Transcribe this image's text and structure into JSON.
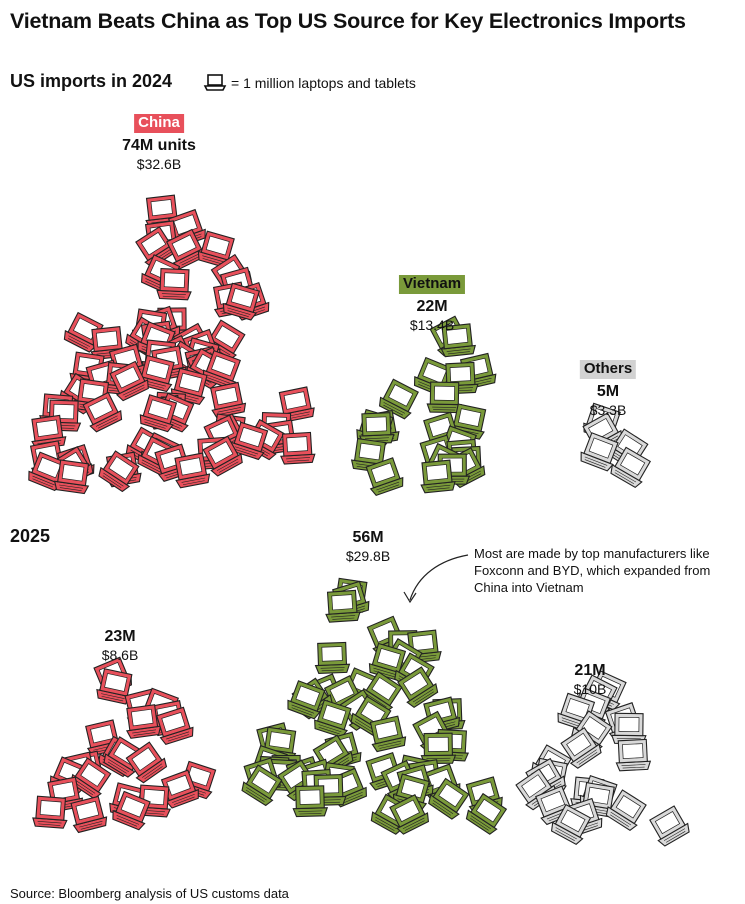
{
  "title": "Vietnam Beats China as Top US Source for Key Electronics Imports",
  "subtitle": "US imports in 2024",
  "legend": {
    "icon": "laptop-icon",
    "text": "= 1 million laptops and tablets"
  },
  "year_2025_label": "2025",
  "source": "Source: Bloomberg analysis of US customs data",
  "annotation": "Most are made by top manufacturers like Foxconn and BYD, which expanded from China into Vietnam",
  "colors": {
    "china": "#e8505b",
    "vietnam": "#7a9a3a",
    "others": "#d9d9d9"
  },
  "labels_2024": {
    "china": {
      "name": "China",
      "units": "74M units",
      "value": "$32.6B"
    },
    "vietnam": {
      "name": "Vietnam",
      "units": "22M",
      "value": "$13.4B"
    },
    "others": {
      "name": "Others",
      "units": "5M",
      "value": "$3.3B"
    }
  },
  "labels_2025": {
    "china": {
      "units": "23M",
      "value": "$8.6B"
    },
    "vietnam": {
      "units": "56M",
      "value": "$29.8B"
    },
    "others": {
      "units": "21M",
      "value": "$10B"
    }
  },
  "chart_data": {
    "type": "pictogram",
    "unit": "1 million laptops and tablets",
    "categories": [
      "China",
      "Vietnam",
      "Others"
    ],
    "series": [
      {
        "name": "2024",
        "units_millions": [
          74,
          22,
          5
        ],
        "value_billions_usd": [
          32.6,
          13.4,
          3.3
        ]
      },
      {
        "name": "2025",
        "units_millions": [
          23,
          56,
          21
        ],
        "value_billions_usd": [
          8.6,
          29.8,
          10
        ]
      }
    ]
  }
}
